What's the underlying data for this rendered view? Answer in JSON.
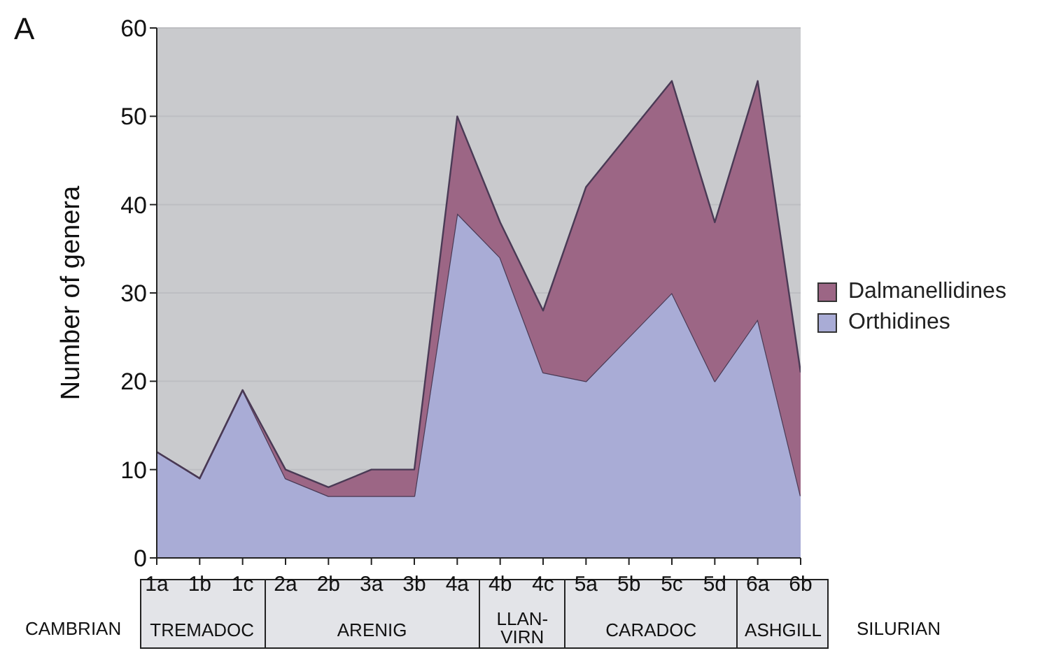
{
  "chart_data": {
    "type": "area",
    "stacked": true,
    "ylabel": "Number of genera",
    "categories": [
      "1a",
      "1b",
      "1c",
      "2a",
      "2b",
      "3a",
      "3b",
      "4a",
      "4b",
      "4c",
      "5a",
      "5b",
      "5c",
      "5d",
      "6a",
      "6b"
    ],
    "series": [
      {
        "name": "Orthidines",
        "color": "#a9acd6",
        "values": [
          12,
          9,
          19,
          9,
          7,
          7,
          7,
          39,
          34,
          21,
          20,
          25,
          30,
          20,
          27,
          7
        ]
      },
      {
        "name": "Dalmanellidines",
        "color": "#9c6685",
        "values": [
          0,
          0,
          0,
          1,
          1,
          3,
          3,
          11,
          4,
          7,
          22,
          23,
          24,
          18,
          27,
          14
        ]
      }
    ],
    "ylim": [
      0,
      60
    ],
    "yticks": [
      0,
      10,
      20,
      30,
      40,
      50,
      60
    ],
    "grid": "y",
    "legend": "right",
    "annotations": [
      "A",
      "CAMBRIAN",
      "TREMADOC",
      "ARENIG",
      "LLAN-\nVIRN",
      "CARADOC",
      "ASHGILL",
      "SILURIAN"
    ]
  }
}
